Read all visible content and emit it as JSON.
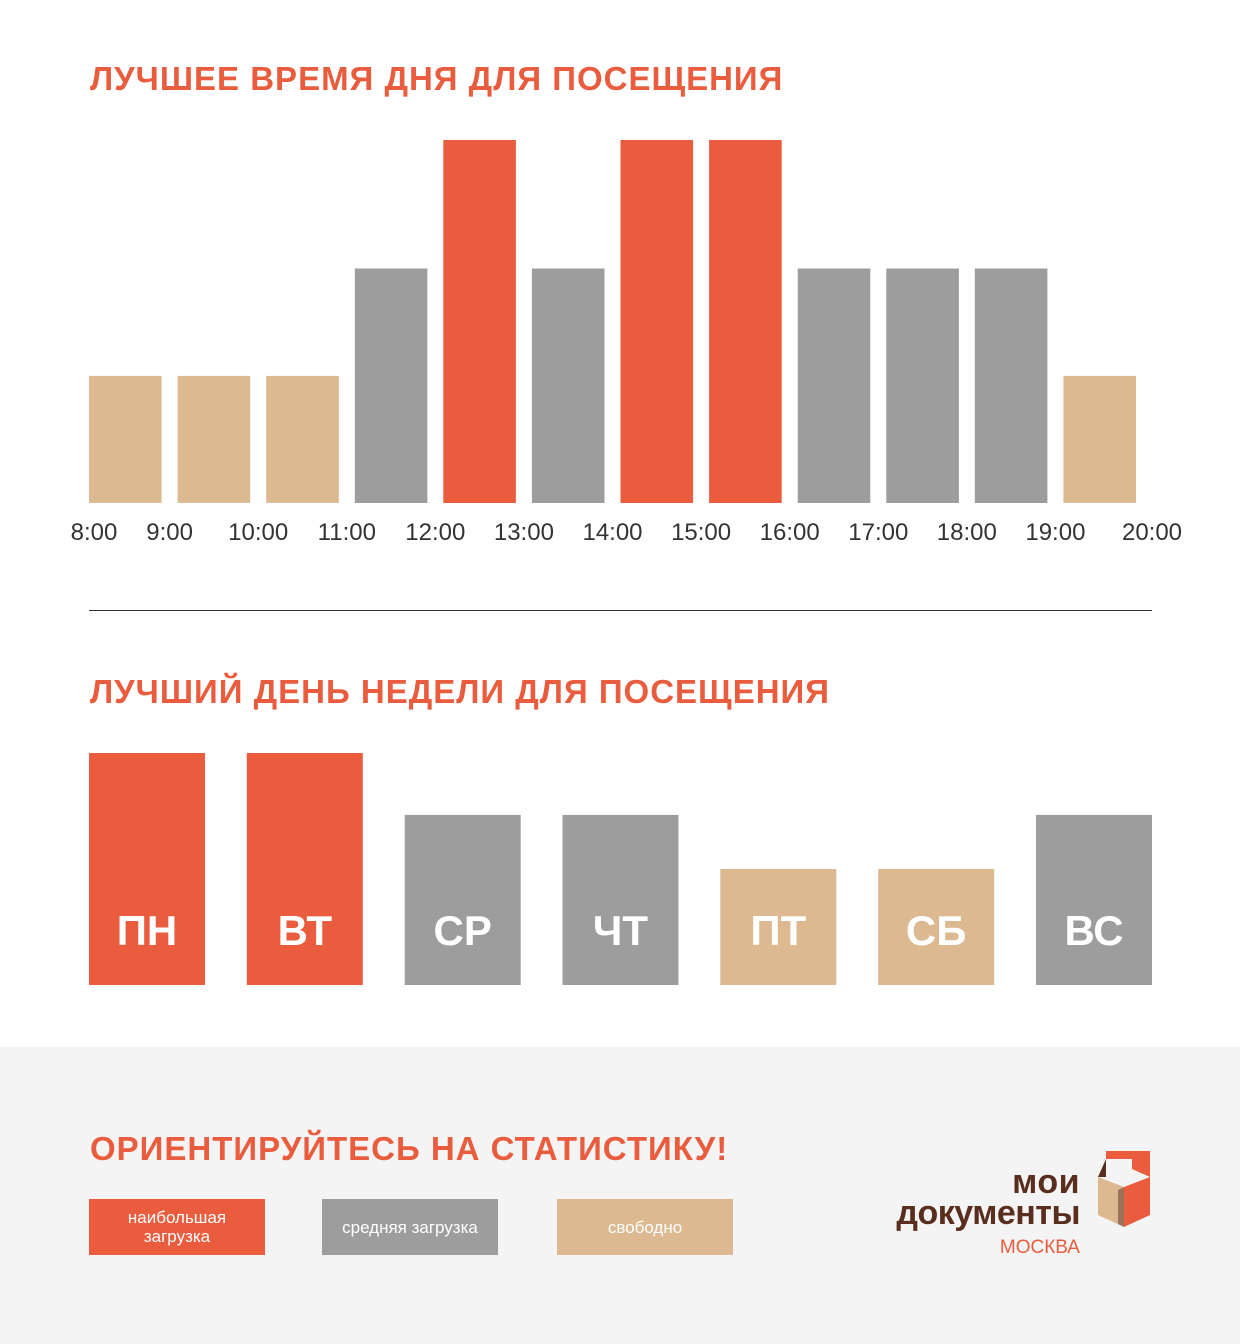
{
  "colors": {
    "high": "#e95d3e",
    "medium": "#9d9d9d",
    "free": "#dcb991",
    "brand_dark": "#5a2e1f"
  },
  "chart_data": [
    {
      "type": "bar",
      "title": "ЛУЧШЕЕ ВРЕМЯ ДНЯ ДЛЯ ПОСЕЩЕНИЯ",
      "x_ticks": [
        "8:00",
        "9:00",
        "10:00",
        "11:00",
        "12:00",
        "13:00",
        "14:00",
        "15:00",
        "16:00",
        "17:00",
        "18:00",
        "19:00",
        "20:00"
      ],
      "categories": [
        "8:00–9:00",
        "9:00–10:00",
        "10:00–11:00",
        "11:00–12:00",
        "12:00–13:00",
        "13:00–14:00",
        "14:00–15:00",
        "15:00–16:00",
        "16:00–17:00",
        "17:00–18:00",
        "18:00–19:00",
        "19:00–20:00"
      ],
      "levels": [
        "free",
        "free",
        "free",
        "medium",
        "high",
        "medium",
        "high",
        "high",
        "medium",
        "medium",
        "medium",
        "free"
      ],
      "values": [
        1,
        1,
        1,
        2,
        3,
        2,
        3,
        3,
        2,
        2,
        2,
        1
      ],
      "ylim": [
        0,
        3
      ],
      "grid": false
    },
    {
      "type": "bar",
      "title": "ЛУЧШИЙ ДЕНЬ НЕДЕЛИ ДЛЯ ПОСЕЩЕНИЯ",
      "categories": [
        "ПН",
        "ВТ",
        "СР",
        "ЧТ",
        "ПТ",
        "СБ",
        "ВС"
      ],
      "levels": [
        "high",
        "high",
        "medium",
        "medium",
        "free",
        "free",
        "medium"
      ],
      "values": [
        3,
        3,
        2,
        2,
        1,
        1,
        2
      ],
      "ylim": [
        0,
        3
      ],
      "grid": false
    }
  ],
  "footer": {
    "title": "ОРИЕНТИРУЙТЕСЬ НА СТАТИСТИКУ!",
    "legend": {
      "high": "наибольшая загрузка",
      "medium": "средняя загрузка",
      "free": "свободно"
    }
  },
  "logo": {
    "line1": "мои",
    "line2": "документы",
    "city": "МОСКВА"
  }
}
